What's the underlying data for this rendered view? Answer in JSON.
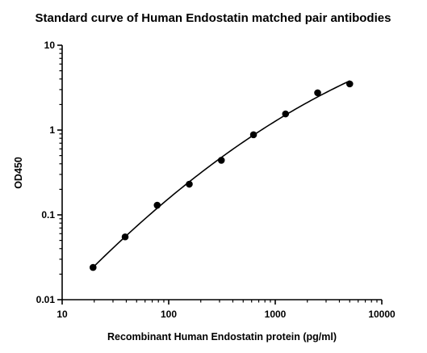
{
  "chart_data": {
    "type": "scatter",
    "title": "Standard curve of Human Endostatin matched pair antibodies",
    "xlabel": "Recombinant Human Endostatin protein (pg/ml)",
    "ylabel": "OD450",
    "xscale": "log",
    "yscale": "log",
    "xlim": [
      10,
      10000
    ],
    "ylim": [
      0.01,
      10
    ],
    "xticks": [
      {
        "value": 10,
        "label": "10"
      },
      {
        "value": 100,
        "label": "100"
      },
      {
        "value": 1000,
        "label": "1000"
      },
      {
        "value": 10000,
        "label": "10000"
      }
    ],
    "yticks": [
      {
        "value": 0.01,
        "label": "0.01"
      },
      {
        "value": 0.1,
        "label": "0.1"
      },
      {
        "value": 1,
        "label": "1"
      },
      {
        "value": 10,
        "label": "10"
      }
    ],
    "grid": false,
    "legend": "none",
    "series": [
      {
        "points": [
          {
            "x": 19.5,
            "y": 0.024
          },
          {
            "x": 39,
            "y": 0.055
          },
          {
            "x": 78,
            "y": 0.13
          },
          {
            "x": 156,
            "y": 0.23
          },
          {
            "x": 312,
            "y": 0.44
          },
          {
            "x": 625,
            "y": 0.88
          },
          {
            "x": 1250,
            "y": 1.55
          },
          {
            "x": 2500,
            "y": 2.75
          },
          {
            "x": 5000,
            "y": 3.5
          }
        ],
        "fit_curve": true
      }
    ]
  }
}
